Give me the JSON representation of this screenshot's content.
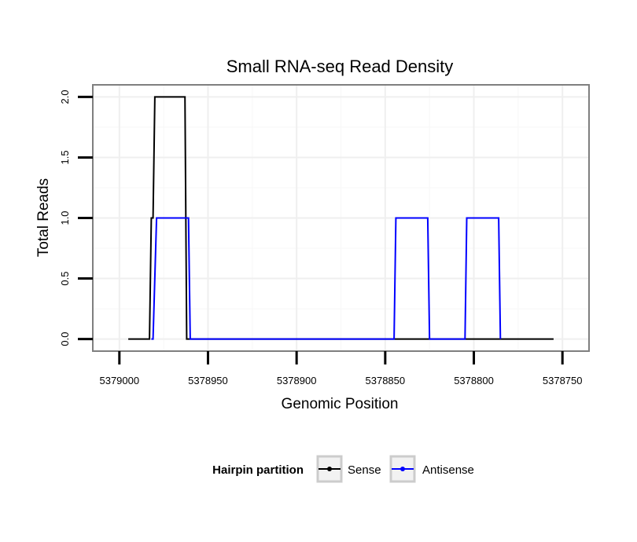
{
  "chart_data": {
    "type": "line",
    "title": "Small RNA-seq Read Density",
    "xlabel": "Genomic Position",
    "ylabel": "Total Reads",
    "x_reversed": true,
    "xlim": [
      5379015,
      5378735
    ],
    "ylim": [
      -0.1,
      2.1
    ],
    "x_ticks": [
      5379000,
      5378950,
      5378900,
      5378850,
      5378800,
      5378750
    ],
    "x_tick_labels": [
      "5379000",
      "5378950",
      "5378900",
      "5378850",
      "5378800",
      "5378750"
    ],
    "y_ticks": [
      0.0,
      0.5,
      1.0,
      1.5,
      2.0
    ],
    "y_tick_labels": [
      "0.0",
      "0.5",
      "1.0",
      "1.5",
      "2.0"
    ],
    "grid": true,
    "legend": {
      "title": "Hairpin partition",
      "position": "bottom",
      "entries": [
        "Sense",
        "Antisense"
      ]
    },
    "series": [
      {
        "name": "Sense",
        "color": "#000000",
        "x": [
          5378995,
          5378983,
          5378982,
          5378981,
          5378980,
          5378963,
          5378962,
          5378755
        ],
        "y": [
          0,
          0,
          1,
          1,
          2,
          2,
          0,
          0
        ]
      },
      {
        "name": "Antisense",
        "color": "#0000ff",
        "x": [
          5378982,
          5378981,
          5378979,
          5378961,
          5378960,
          5378845,
          5378844,
          5378826,
          5378825,
          5378805,
          5378804,
          5378786,
          5378785
        ],
        "y": [
          0,
          0,
          1,
          1,
          0,
          0,
          1,
          1,
          0,
          0,
          1,
          1,
          0
        ]
      }
    ]
  }
}
